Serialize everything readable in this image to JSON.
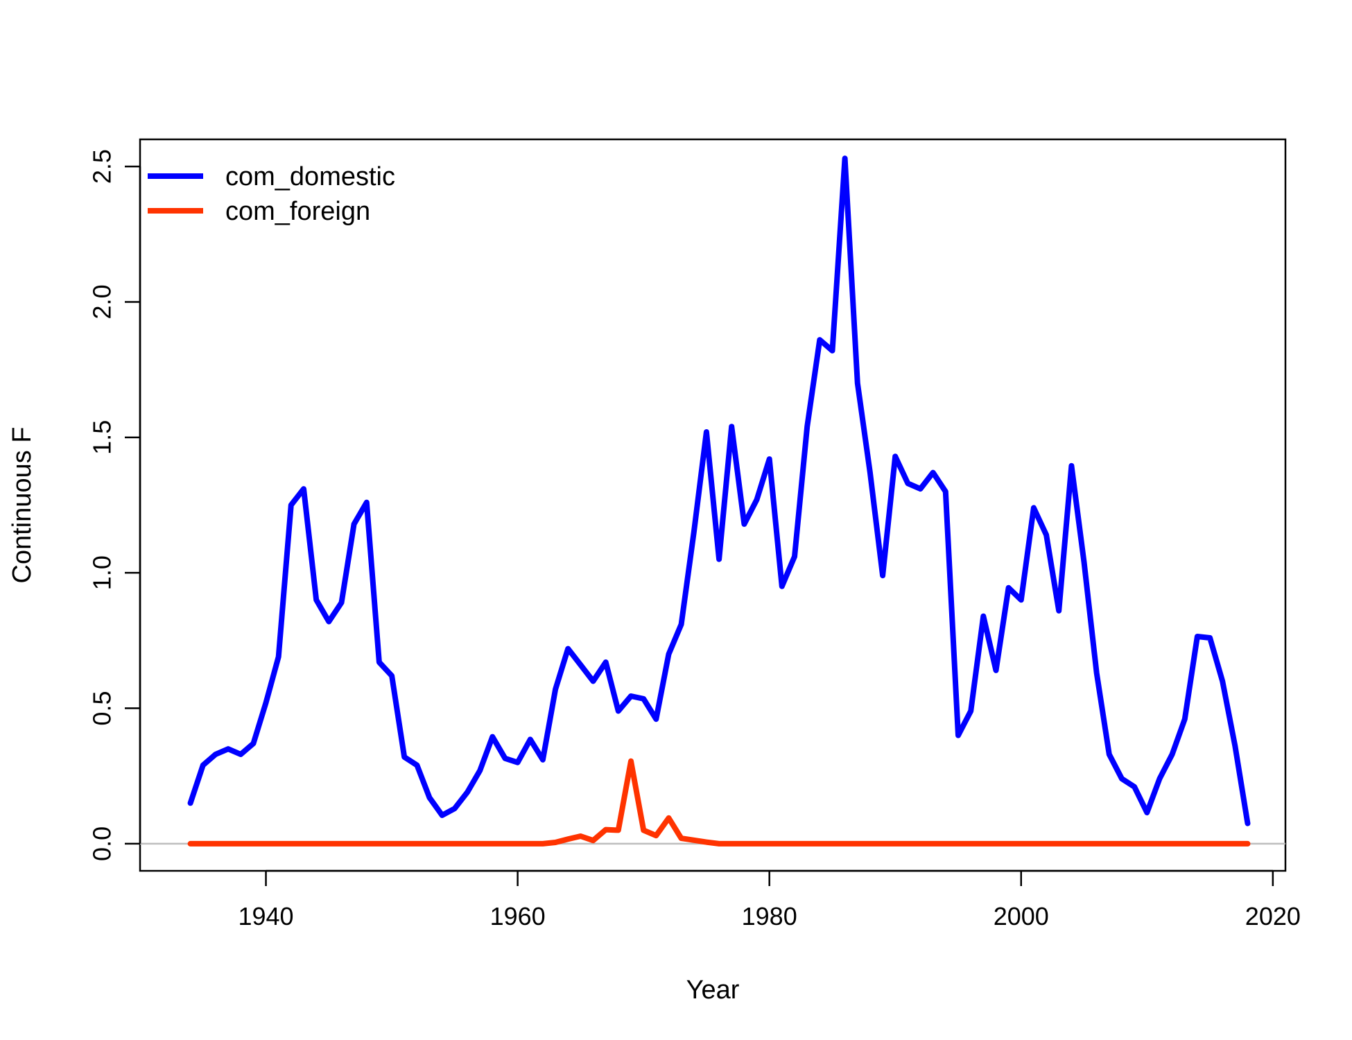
{
  "chart_data": {
    "type": "line",
    "title": "",
    "xlabel": "Year",
    "ylabel": "Continuous F",
    "xlim": [
      1930,
      2021
    ],
    "ylim": [
      -0.1,
      2.6
    ],
    "xticks": [
      1940,
      1960,
      1980,
      2000,
      2020
    ],
    "yticks": [
      0.0,
      0.5,
      1.0,
      1.5,
      2.0,
      2.5
    ],
    "ytick_labels": [
      "0.0",
      "0.5",
      "1.0",
      "1.5",
      "2.0",
      "2.5"
    ],
    "grid": false,
    "reference_line": {
      "y": 0,
      "color": "#bdbdbd"
    },
    "legend": {
      "position": "top-left",
      "box": false
    },
    "series": [
      {
        "name": "com_domestic",
        "color": "#0000ff",
        "x": [
          1934,
          1935,
          1936,
          1937,
          1938,
          1939,
          1940,
          1941,
          1942,
          1943,
          1944,
          1945,
          1946,
          1947,
          1948,
          1949,
          1950,
          1951,
          1952,
          1953,
          1954,
          1955,
          1956,
          1957,
          1958,
          1959,
          1960,
          1961,
          1962,
          1963,
          1964,
          1965,
          1966,
          1967,
          1968,
          1969,
          1970,
          1971,
          1972,
          1973,
          1974,
          1975,
          1976,
          1977,
          1978,
          1979,
          1980,
          1981,
          1982,
          1983,
          1984,
          1985,
          1986,
          1987,
          1988,
          1989,
          1990,
          1991,
          1992,
          1993,
          1994,
          1995,
          1996,
          1997,
          1998,
          1999,
          2000,
          2001,
          2002,
          2003,
          2004,
          2005,
          2006,
          2007,
          2008,
          2009,
          2010,
          2011,
          2012,
          2013,
          2014,
          2015,
          2016,
          2017,
          2018
        ],
        "y": [
          0.15,
          0.29,
          0.33,
          0.35,
          0.33,
          0.37,
          0.52,
          0.69,
          1.25,
          1.31,
          0.9,
          0.82,
          0.89,
          1.18,
          1.26,
          0.67,
          0.62,
          0.32,
          0.29,
          0.17,
          0.105,
          0.13,
          0.19,
          0.27,
          0.395,
          0.315,
          0.3,
          0.385,
          0.31,
          0.57,
          0.72,
          0.66,
          0.6,
          0.67,
          0.49,
          0.545,
          0.535,
          0.46,
          0.7,
          0.81,
          1.15,
          1.52,
          1.05,
          1.54,
          1.18,
          1.27,
          1.42,
          0.95,
          1.06,
          1.54,
          1.86,
          1.82,
          2.53,
          1.7,
          1.37,
          0.99,
          1.43,
          1.33,
          1.31,
          1.37,
          1.3,
          0.4,
          0.49,
          0.84,
          0.64,
          0.945,
          0.9,
          1.24,
          1.14,
          0.86,
          1.395,
          1.04,
          0.63,
          0.33,
          0.24,
          0.21,
          0.115,
          0.24,
          0.33,
          0.46,
          0.765,
          0.76,
          0.6,
          0.36,
          0.075
        ]
      },
      {
        "name": "com_foreign",
        "color": "#ff3300",
        "x": [
          1934,
          1935,
          1936,
          1937,
          1938,
          1939,
          1940,
          1941,
          1942,
          1943,
          1944,
          1945,
          1946,
          1947,
          1948,
          1949,
          1950,
          1951,
          1952,
          1953,
          1954,
          1955,
          1956,
          1957,
          1958,
          1959,
          1960,
          1961,
          1962,
          1963,
          1964,
          1965,
          1966,
          1967,
          1968,
          1969,
          1970,
          1971,
          1972,
          1973,
          1974,
          1975,
          1976,
          1977,
          1978,
          1979,
          1980,
          1981,
          1982,
          1983,
          1984,
          1985,
          1986,
          1987,
          1988,
          1989,
          1990,
          1991,
          1992,
          1993,
          1994,
          1995,
          1996,
          1997,
          1998,
          1999,
          2000,
          2001,
          2002,
          2003,
          2004,
          2005,
          2006,
          2007,
          2008,
          2009,
          2010,
          2011,
          2012,
          2013,
          2014,
          2015,
          2016,
          2017,
          2018
        ],
        "y": [
          0,
          0,
          0,
          0,
          0,
          0,
          0,
          0,
          0,
          0,
          0,
          0,
          0,
          0,
          0,
          0,
          0,
          0,
          0,
          0,
          0,
          0,
          0,
          0,
          0,
          0,
          0,
          0,
          0,
          0.005,
          0.017,
          0.028,
          0.012,
          0.052,
          0.05,
          0.305,
          0.05,
          0.03,
          0.095,
          0.02,
          0.013,
          0.006,
          0,
          0,
          0,
          0,
          0,
          0,
          0,
          0,
          0,
          0,
          0,
          0,
          0,
          0,
          0,
          0,
          0,
          0,
          0,
          0,
          0,
          0,
          0,
          0,
          0,
          0,
          0,
          0,
          0,
          0,
          0,
          0,
          0,
          0,
          0,
          0,
          0,
          0,
          0,
          0,
          0,
          0,
          0
        ]
      }
    ]
  }
}
